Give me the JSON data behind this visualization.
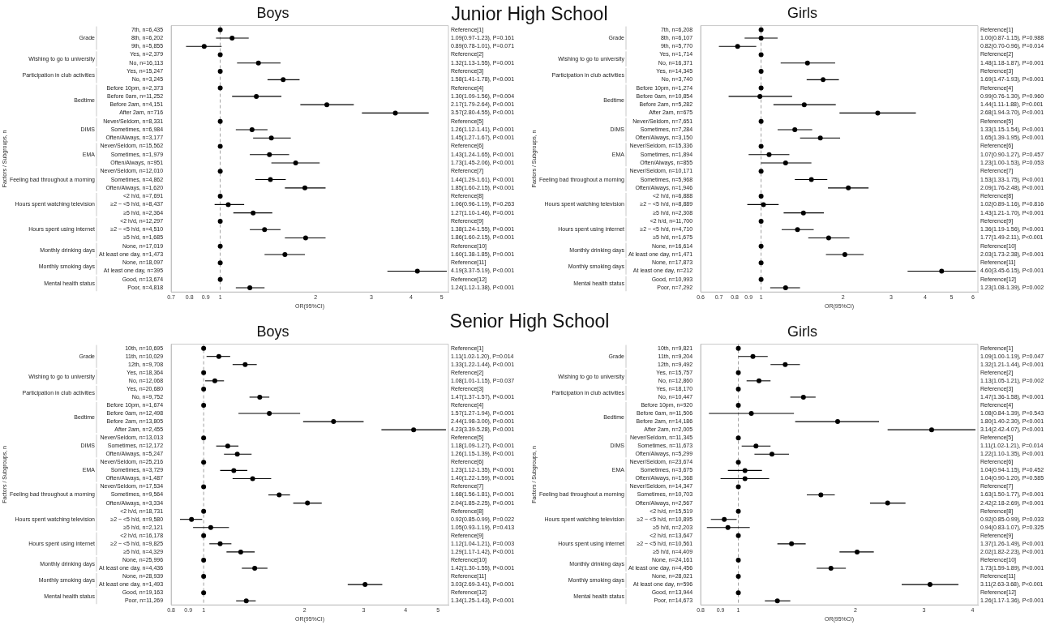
{
  "chart_data": [
    {
      "type": "scatter",
      "subtitle": "Junior High School",
      "title": "Boys",
      "xlabel": "OR(95%CI)",
      "ylabel": "Factors / Subgroups, n",
      "orientation": "horizontal",
      "log": "x",
      "marker": "circle",
      "color": "#000000",
      "xlim": [
        0.7,
        5.25
      ],
      "xticks": [
        0.7,
        0.8,
        0.9,
        1,
        2,
        3,
        4,
        5
      ],
      "ref_lines": [
        {
          "axis": "x",
          "value": 1,
          "color": "#a0a0a0",
          "line_style": "dashed"
        }
      ],
      "categories": [
        "7th, n=6,435",
        "8th, n=6,202",
        "9th, n=5,855",
        "Yes, n=2,379",
        "No, n=16,113",
        "Yes, n=15,247",
        "No, n=3,245",
        "Before 10pm, n=2,373",
        "Before 0am, n=11,252",
        "Before 2am, n=4,151",
        "After 2am, n=716",
        "Never/Seldom, n=8,331",
        "Sometimes, n=6,984",
        "Often/Always, n=3,177",
        "Never/Seldom, n=15,562",
        "Sometimes, n=1,979",
        "Often/Always, n=951",
        "Never/Seldom, n=12,010",
        "Sometimes, n=4,862",
        "Often/Always, n=1,620",
        "<2 h/d, n=7,691",
        "≥2 ~ <5 h/d, n=8,437",
        "≥5 h/d, n=2,364",
        "<2 h/d, n=12,297",
        "≥2 ~ <5 h/d, n=4,510",
        "≥5 h/d, n=1,685",
        "None, n=17,019",
        "At least one day, n=1,473",
        "None, n=18,097",
        "At least one day, n=395",
        "Good, n=13,674",
        "Poor, n=4,818"
      ],
      "values": [
        1,
        1.09,
        0.89,
        1,
        1.32,
        1,
        1.58,
        1,
        1.3,
        2.17,
        3.57,
        1,
        1.26,
        1.45,
        1,
        1.43,
        1.73,
        1,
        1.44,
        1.85,
        1,
        1.06,
        1.27,
        1,
        1.38,
        1.86,
        1,
        1.6,
        1,
        4.19,
        1,
        1.24
      ],
      "errors": [
        null,
        [
          0.97,
          1.23
        ],
        [
          0.78,
          1.01
        ],
        null,
        [
          1.13,
          1.55
        ],
        null,
        [
          1.41,
          1.78
        ],
        null,
        [
          1.09,
          1.56
        ],
        [
          1.79,
          2.64
        ],
        [
          2.8,
          4.55
        ],
        null,
        [
          1.12,
          1.41
        ],
        [
          1.27,
          1.67
        ],
        null,
        [
          1.24,
          1.65
        ],
        [
          1.45,
          2.06
        ],
        null,
        [
          1.29,
          1.61
        ],
        [
          1.6,
          2.15
        ],
        null,
        [
          0.96,
          1.19
        ],
        [
          1.1,
          1.46
        ],
        null,
        [
          1.24,
          1.55
        ],
        [
          1.6,
          2.15
        ],
        null,
        [
          1.38,
          1.85
        ],
        null,
        [
          3.37,
          5.19
        ],
        null,
        [
          1.12,
          1.38
        ]
      ],
      "value_labels": [
        null,
        "1.09(0.97-1.23), P=0.161",
        "0.89(0.78-1.01), P=0.071",
        null,
        "1.32(1.13-1.55), P=0.001",
        null,
        "1.58(1.41-1.78), P<0.001",
        null,
        "1.30(1.09-1.56), P=0.004",
        "2.17(1.79-2.64), P<0.001",
        "3.57(2.80-4.55), P<0.001",
        null,
        "1.26(1.12-1.41), P<0.001",
        "1.45(1.27-1.67), P<0.001",
        null,
        "1.43(1.24-1.65), P<0.001",
        "1.73(1.45-2.06), P<0.001",
        null,
        "1.44(1.29-1.61), P<0.001",
        "1.85(1.60-2.15), P<0.001",
        null,
        "1.06(0.96-1.19), P=0.263",
        "1.27(1.10-1.46), P=0.001",
        null,
        "1.38(1.24-1.55), P<0.001",
        "1.86(1.60-2.15), P<0.001",
        null,
        "1.60(1.38-1.85), P=0.001",
        null,
        "4.19(3.37-5.19), P<0.001",
        null,
        "1.24(1.12-1.38), P<0.001"
      ],
      "annotations": [
        "Reference[1]",
        "Reference[2]",
        "Reference[3]",
        "Reference[4]",
        "Reference[5]",
        "Reference[6]",
        "Reference[7]",
        "Reference[8]",
        "Reference[9]",
        "Reference[10]",
        "Reference[11]",
        "Reference[12]",
        "Grade",
        "Wishing to go to university",
        "Participation in club activities",
        "Bedtime",
        "DIMS",
        "EMA",
        "Feeling bad throughout a morning",
        "Hours spent watching television",
        "Hours spent using internet",
        "Monthly drinking days",
        "Monthly smoking days",
        "Mental health status"
      ]
    },
    {
      "type": "scatter",
      "title": "Girls",
      "xlabel": "OR(95%CI)",
      "ylabel": "Factors / Subgroups, n",
      "orientation": "horizontal",
      "log": "x",
      "marker": "circle",
      "color": "#000000",
      "xlim": [
        0.6,
        6.25
      ],
      "xticks": [
        0.6,
        0.7,
        0.8,
        0.9,
        1,
        2,
        3,
        4,
        5,
        6
      ],
      "ref_lines": [
        {
          "axis": "x",
          "value": 1,
          "color": "#a0a0a0",
          "line_style": "dashed"
        }
      ],
      "categories": [
        "7th, n=6,208",
        "8th, n=6,107",
        "9th, n=5,770",
        "Yes, n=1,714",
        "No, n=16,371",
        "Yes, n=14,345",
        "No, n=3,740",
        "Before 10pm, n=1,274",
        "Before 0am, n=10,854",
        "Before 2am, n=5,282",
        "After 2am, n=675",
        "Never/Seldom, n=7,651",
        "Sometimes, n=7,284",
        "Often/Always, n=3,150",
        "Never/Seldom, n=15,336",
        "Sometimes, n=1,894",
        "Often/Always, n=855",
        "Never/Seldom, n=10,171",
        "Sometimes, n=5,968",
        "Often/Always, n=1,946",
        "<2 h/d, n=6,888",
        "≥2 ~ <5 h/d, n=8,889",
        "≥5 h/d, n=2,308",
        "<2 h/d, n=11,700",
        "≥2 ~ <5 h/d, n=4,710",
        "≥5 h/d, n=1,675",
        "None, n=16,614",
        "At least one day, n=1,471",
        "None, n=17,873",
        "At least one day, n=212",
        "Good, n=10,993",
        "Poor, n=7,292"
      ],
      "values": [
        1,
        1.0,
        0.82,
        1,
        1.48,
        1,
        1.69,
        1,
        0.99,
        1.44,
        2.68,
        1,
        1.33,
        1.65,
        1,
        1.07,
        1.23,
        1,
        1.53,
        2.09,
        1,
        1.02,
        1.43,
        1,
        1.36,
        1.77,
        1,
        2.03,
        1,
        4.6,
        1,
        1.23
      ],
      "errors": [
        null,
        [
          0.87,
          1.15
        ],
        [
          0.7,
          0.96
        ],
        null,
        [
          1.18,
          1.87
        ],
        null,
        [
          1.47,
          1.93
        ],
        null,
        [
          0.76,
          1.3
        ],
        [
          1.11,
          1.88
        ],
        [
          1.94,
          3.7
        ],
        null,
        [
          1.15,
          1.54
        ],
        [
          1.39,
          1.95
        ],
        null,
        [
          0.9,
          1.27
        ],
        [
          1.0,
          1.53
        ],
        null,
        [
          1.33,
          1.75
        ],
        [
          1.76,
          2.48
        ],
        null,
        [
          0.89,
          1.16
        ],
        [
          1.21,
          1.7
        ],
        null,
        [
          1.19,
          1.56
        ],
        [
          1.49,
          2.11
        ],
        null,
        [
          1.73,
          2.38
        ],
        null,
        [
          3.45,
          6.15
        ],
        null,
        [
          1.08,
          1.39
        ]
      ],
      "value_labels": [
        null,
        "1.00(0.87-1.15), P=0.988",
        "0.82(0.70-0.96), P=0.014",
        null,
        "1.48(1.18-1.87), P=0.001",
        null,
        "1.69(1.47-1.93), P<0.001",
        null,
        "0.99(0.76-1.30), P=0.960",
        "1.44(1.11-1.88), P=0.001",
        "2.68(1.94-3.70), P<0.001",
        null,
        "1.33(1.15-1.54), P<0.001",
        "1.65(1.39-1.95), P<0.001",
        null,
        "1.07(0.90-1.27), P=0.457",
        "1.23(1.00-1.53), P=0.053",
        null,
        "1.53(1.33-1.75), P<0.001",
        "2.09(1.76-2.48), P<0.001",
        null,
        "1.02(0.89-1.16), P=0.816",
        "1.43(1.21-1.70), P<0.001",
        null,
        "1.36(1.19-1.56), P<0.001",
        "1.77(1.49-2.11), P<0.001",
        null,
        "2.03(1.73-2.38), P<0.001",
        null,
        "4.60(3.45-6.15), P<0.001",
        null,
        "1.23(1.08-1.39), P=0.002"
      ],
      "annotations": [
        "Reference[1]",
        "Reference[2]",
        "Reference[3]",
        "Reference[4]",
        "Reference[5]",
        "Reference[6]",
        "Reference[7]",
        "Reference[8]",
        "Reference[9]",
        "Reference[10]",
        "Reference[11]",
        "Reference[12]",
        "Grade",
        "Wishing to go to university",
        "Participation in club activities",
        "Bedtime",
        "DIMS",
        "EMA",
        "Feeling bad throughout a morning",
        "Hours spent watching television",
        "Hours spent using internet",
        "Monthly drinking days",
        "Monthly smoking days",
        "Mental health status"
      ]
    },
    {
      "type": "scatter",
      "subtitle": "Senior High School",
      "title": "Boys",
      "xlabel": "OR(95%CI)",
      "ylabel": "Factors / Subgroups, n",
      "orientation": "horizontal",
      "log": "x",
      "marker": "circle",
      "color": "#000000",
      "xlim": [
        0.8,
        5.37
      ],
      "xticks": [
        0.8,
        0.9,
        1,
        2,
        3,
        4,
        5
      ],
      "ref_lines": [
        {
          "axis": "x",
          "value": 1,
          "color": "#a0a0a0",
          "line_style": "dashed"
        }
      ],
      "categories": [
        "10th, n=10,695",
        "11th, n=10,029",
        "12th, n=9,708",
        "Yes, n=18,364",
        "No, n=12,068",
        "Yes, n=20,680",
        "No, n=9,752",
        "Before 10pm, n=1,674",
        "Before 0am, n=12,498",
        "Before 2am, n=13,805",
        "After 2am, n=2,455",
        "Never/Seldom, n=13,013",
        "Sometimes, n=12,172",
        "Often/Always, n=5,247",
        "Never/Seldom, n=25,216",
        "Sometimes, n=3,729",
        "Often/Always, n=1,487",
        "Never/Seldom, n=17,534",
        "Sometimes, n=9,564",
        "Often/Always, n=3,334",
        "<2 h/d, n=18,731",
        "≥2 ~ <5 h/d, n=9,580",
        "≥5 h/d, n=2,121",
        "<2 h/d, n=16,178",
        "≥2 ~ <5 h/d, n=9,825",
        "≥5 h/d, n=4,329",
        "None, n=25,996",
        "At least one day, n=4,436",
        "None, n=28,939",
        "At least one day, n=1,493",
        "Good, n=19,163",
        "Poor, n=11,269"
      ],
      "values": [
        1,
        1.11,
        1.33,
        1,
        1.08,
        1,
        1.47,
        1,
        1.57,
        2.44,
        4.23,
        1,
        1.18,
        1.26,
        1,
        1.23,
        1.4,
        1,
        1.68,
        2.04,
        1,
        0.92,
        1.05,
        1,
        1.12,
        1.29,
        1,
        1.42,
        1,
        3.03,
        1,
        1.34
      ],
      "errors": [
        null,
        [
          1.02,
          1.2
        ],
        [
          1.22,
          1.44
        ],
        null,
        [
          1.01,
          1.15
        ],
        null,
        [
          1.37,
          1.57
        ],
        null,
        [
          1.27,
          1.94
        ],
        [
          1.98,
          3.0
        ],
        [
          3.39,
          5.28
        ],
        null,
        [
          1.09,
          1.27
        ],
        [
          1.15,
          1.39
        ],
        null,
        [
          1.12,
          1.35
        ],
        [
          1.22,
          1.59
        ],
        null,
        [
          1.56,
          1.81
        ],
        [
          1.85,
          2.25
        ],
        null,
        [
          0.85,
          0.99
        ],
        [
          0.93,
          1.19
        ],
        null,
        [
          1.04,
          1.21
        ],
        [
          1.17,
          1.42
        ],
        null,
        [
          1.3,
          1.55
        ],
        null,
        [
          2.69,
          3.41
        ],
        null,
        [
          1.25,
          1.43
        ]
      ],
      "value_labels": [
        null,
        "1.11(1.02-1.20), P=0.014",
        "1.33(1.22-1.44), P<0.001",
        null,
        "1.08(1.01-1.15), P=0.037",
        null,
        "1.47(1.37-1.57), P<0.001",
        null,
        "1.57(1.27-1.94), P<0.001",
        "2.44(1.98-3.00), P<0.001",
        "4.23(3.39-5.28), P<0.001",
        null,
        "1.18(1.09-1.27), P<0.001",
        "1.26(1.15-1.39), P<0.001",
        null,
        "1.23(1.12-1.35), P<0.001",
        "1.40(1.22-1.59), P<0.001",
        null,
        "1.68(1.56-1.81), P<0.001",
        "2.04(1.85-2.25), P<0.001",
        null,
        "0.92(0.85-0.99), P=0.022",
        "1.05(0.93-1.19), P=0.413",
        null,
        "1.12(1.04-1.21), P=0.003",
        "1.29(1.17-1.42), P<0.001",
        null,
        "1.42(1.30-1.55), P<0.001",
        null,
        "3.03(2.69-3.41), P<0.001",
        null,
        "1.34(1.25-1.43), P<0.001"
      ],
      "annotations": [
        "Reference[1]",
        "Reference[2]",
        "Reference[3]",
        "Reference[4]",
        "Reference[5]",
        "Reference[6]",
        "Reference[7]",
        "Reference[8]",
        "Reference[9]",
        "Reference[10]",
        "Reference[11]",
        "Reference[12]",
        "Grade",
        "Wishing to go to university",
        "Participation in club activities",
        "Bedtime",
        "DIMS",
        "EMA",
        "Feeling bad throughout a morning",
        "Hours spent watching television",
        "Hours spent using internet",
        "Monthly drinking days",
        "Monthly smoking days",
        "Mental health status"
      ]
    },
    {
      "type": "scatter",
      "title": "Girls",
      "xlabel": "OR(95%CI)",
      "ylabel": "Factors / Subgroups, n",
      "orientation": "horizontal",
      "log": "x",
      "marker": "circle",
      "color": "#000000",
      "xlim": [
        0.8,
        4.13
      ],
      "xticks": [
        0.8,
        0.9,
        1,
        2,
        3,
        4
      ],
      "ref_lines": [
        {
          "axis": "x",
          "value": 1,
          "color": "#a0a0a0",
          "line_style": "dashed"
        }
      ],
      "categories": [
        "10th, n=9,821",
        "11th, n=9,204",
        "12th, n=9,492",
        "Yes, n=15,757",
        "No, n=12,860",
        "Yes, n=18,170",
        "No, n=10,447",
        "Before 10pm, n=920",
        "Before 0am, n=11,506",
        "Before 2am, n=14,186",
        "After 2am, n=2,005",
        "Never/Seldom, n=11,345",
        "Sometimes, n=11,673",
        "Often/Always, n=5,299",
        "Never/Seldom, n=23,674",
        "Sometimes, n=3,675",
        "Often/Always, n=1,368",
        "Never/Seldom, n=14,347",
        "Sometimes, n=10,703",
        "Often/Always, n=2,567",
        "<2 h/d, n=15,519",
        "≥2 ~ <5 h/d, n=10,895",
        "≥5 h/d, n=2,203",
        "<2 h/d, n=13,647",
        "≥2 ~ <5 h/d, n=10,561",
        "≥5 h/d, n=4,409",
        "None, n=24,161",
        "At least one day, n=4,456",
        "None, n=28,021",
        "At least one day, n=596",
        "Good, n=13,944",
        "Poor, n=14,673"
      ],
      "values": [
        1,
        1.09,
        1.32,
        1,
        1.13,
        1,
        1.47,
        1,
        1.08,
        1.8,
        3.14,
        1,
        1.11,
        1.22,
        1,
        1.04,
        1.04,
        1,
        1.63,
        2.42,
        1,
        0.92,
        0.94,
        1,
        1.37,
        2.02,
        1,
        1.73,
        1,
        3.11,
        1,
        1.26
      ],
      "errors": [
        null,
        [
          1.0,
          1.19
        ],
        [
          1.21,
          1.44
        ],
        null,
        [
          1.05,
          1.21
        ],
        null,
        [
          1.36,
          1.58
        ],
        null,
        [
          0.84,
          1.39
        ],
        [
          1.4,
          2.3
        ],
        [
          2.42,
          4.07
        ],
        null,
        [
          1.02,
          1.21
        ],
        [
          1.1,
          1.35
        ],
        null,
        [
          0.94,
          1.15
        ],
        [
          0.9,
          1.2
        ],
        null,
        [
          1.5,
          1.77
        ],
        [
          2.18,
          2.69
        ],
        null,
        [
          0.85,
          0.99
        ],
        [
          0.83,
          1.07
        ],
        null,
        [
          1.26,
          1.49
        ],
        [
          1.82,
          2.23
        ],
        null,
        [
          1.59,
          1.89
        ],
        null,
        [
          2.63,
          3.68
        ],
        null,
        [
          1.17,
          1.36
        ]
      ],
      "value_labels": [
        null,
        "1.09(1.00-1.19), P=0.047",
        "1.32(1.21-1.44), P<0.001",
        null,
        "1.13(1.05-1.21), P=0.002",
        null,
        "1.47(1.36-1.58), P<0.001",
        null,
        "1.08(0.84-1.39), P=0.543",
        "1.80(1.40-2.30), P<0.001",
        "3.14(2.42-4.07), P<0.001",
        null,
        "1.11(1.02-1.21), P=0.014",
        "1.22(1.10-1.35), P<0.001",
        null,
        "1.04(0.94-1.15), P=0.452",
        "1.04(0.90-1.20), P=0.585",
        null,
        "1.63(1.50-1.77), P<0.001",
        "2.42(2.18-2.69), P<0.001",
        null,
        "0.92(0.85-0.99), P=0.033",
        "0.94(0.83-1.07), P=0.325",
        null,
        "1.37(1.26-1.49), P<0.001",
        "2.02(1.82-2.23), P<0.001",
        null,
        "1.73(1.59-1.89), P<0.001",
        null,
        "3.11(2.63-3.68), P<0.001",
        null,
        "1.26(1.17-1.36), P<0.001"
      ],
      "annotations": [
        "Reference[1]",
        "Reference[2]",
        "Reference[3]",
        "Reference[4]",
        "Reference[5]",
        "Reference[6]",
        "Reference[7]",
        "Reference[8]",
        "Reference[9]",
        "Reference[10]",
        "Reference[11]",
        "Reference[12]",
        "Grade",
        "Wishing to go to university",
        "Participation in club activities",
        "Bedtime",
        "DIMS",
        "EMA",
        "Feeling bad throughout a morning",
        "Hours spent watching television",
        "Hours spent using internet",
        "Monthly drinking days",
        "Monthly smoking days",
        "Mental health status"
      ]
    }
  ]
}
